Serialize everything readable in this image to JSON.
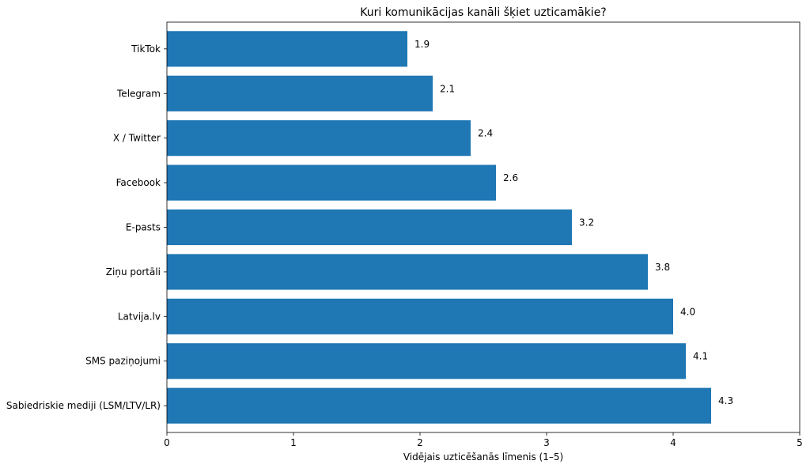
{
  "chart_data": {
    "type": "bar",
    "orientation": "horizontal",
    "title": "Kuri komunikācijas kanāli šķiet uzticamākie?",
    "xlabel": "Vidējais uzticēšanās līmenis (1–5)",
    "ylabel": "",
    "xlim": [
      0,
      5
    ],
    "xticks": [
      "0",
      "1",
      "2",
      "3",
      "4",
      "5"
    ],
    "grid": false,
    "bar_color": "#1f77b4",
    "categories": [
      "TikTok",
      "Telegram",
      "X / Twitter",
      "Facebook",
      "E-pasts",
      "Ziņu portāli",
      "Latvija.lv",
      "SMS paziņojumi",
      "Sabiedriskie mediji (LSM/LTV/LR)"
    ],
    "values": [
      1.9,
      2.1,
      2.4,
      2.6,
      3.2,
      3.8,
      4.0,
      4.1,
      4.3
    ],
    "data_labels": [
      "1.9",
      "2.1",
      "2.4",
      "2.6",
      "3.2",
      "3.8",
      "4.0",
      "4.1",
      "4.3"
    ]
  }
}
